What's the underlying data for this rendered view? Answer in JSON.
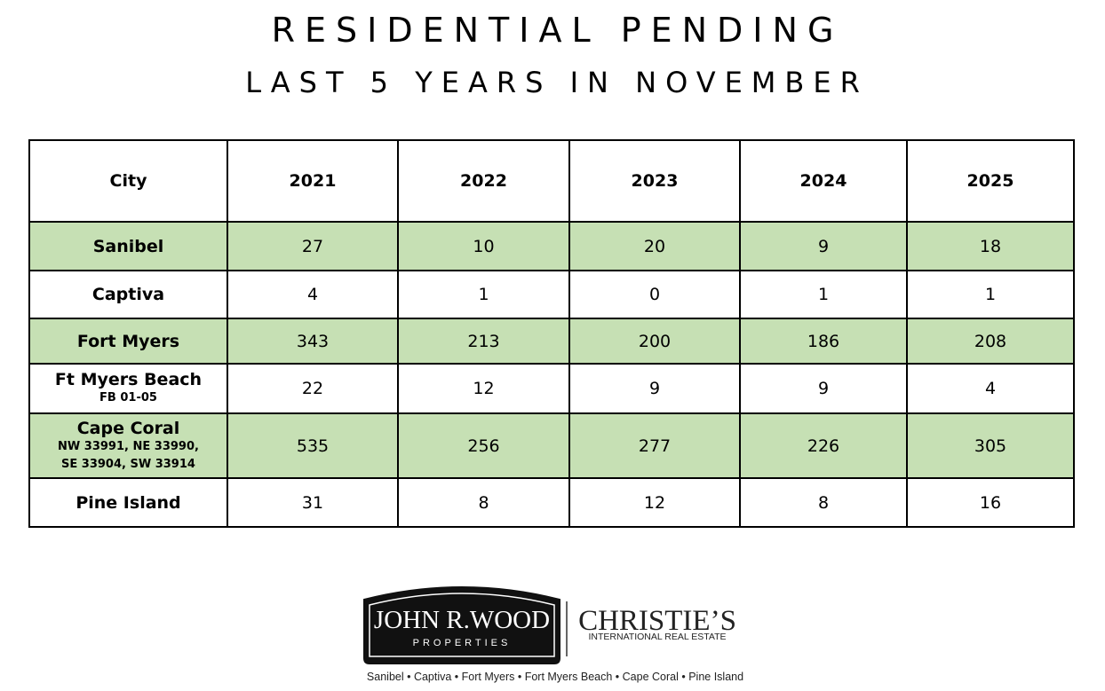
{
  "header": {
    "title": "RESIDENTIAL PENDING",
    "subtitle": "LAST 5 YEARS IN NOVEMBER"
  },
  "table": {
    "columns": [
      "City",
      "2021",
      "2022",
      "2023",
      "2024",
      "2025"
    ],
    "rows": [
      {
        "city": "Sanibel",
        "values": [
          27,
          10,
          20,
          9,
          18
        ]
      },
      {
        "city": "Captiva",
        "values": [
          4,
          1,
          0,
          1,
          1
        ]
      },
      {
        "city": "Fort Myers",
        "values": [
          343,
          213,
          200,
          186,
          208
        ]
      },
      {
        "city": "Ft Myers Beach",
        "note": [
          "FB 01-05"
        ],
        "values": [
          22,
          12,
          9,
          9,
          4
        ]
      },
      {
        "city": "Cape Coral",
        "note": [
          "NW 33991, NE 33990,",
          "SE 33904, SW 33914"
        ],
        "values": [
          535,
          256,
          277,
          226,
          305
        ]
      },
      {
        "city": "Pine Island",
        "values": [
          31,
          8,
          12,
          8,
          16
        ]
      }
    ]
  },
  "footer": {
    "brand": "JOHN R.WOOD",
    "brand_sub": "PROPERTIES",
    "partner": "CHRISTIE’S",
    "partner_sub": "INTERNATIONAL REAL ESTATE",
    "tagline": "Sanibel • Captiva • Fort Myers • Fort Myers Beach • Cape Coral • Pine Island"
  }
}
